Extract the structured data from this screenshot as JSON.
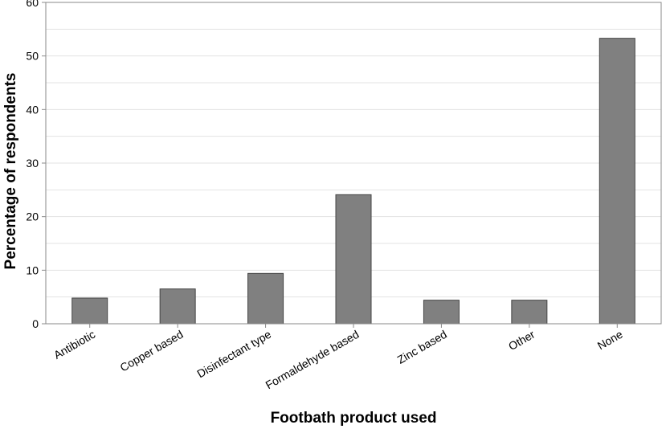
{
  "chart_data": {
    "type": "bar",
    "title": "",
    "xlabel": "Footbath product used",
    "ylabel": "Percentage of respondents",
    "categories": [
      "Antibiotic",
      "Copper based",
      "Disinfectant type",
      "Formaldehyde based",
      "Zinc based",
      "Other",
      "None"
    ],
    "values": [
      4.8,
      6.5,
      9.4,
      24.1,
      4.4,
      4.4,
      53.3
    ],
    "ylim": [
      0,
      60
    ],
    "yticks": [
      0,
      10,
      20,
      30,
      40,
      50,
      60
    ],
    "grid": true,
    "legend": "none",
    "colors": {
      "bar_fill": "#808080",
      "bar_stroke": "#444444",
      "grid": "#e3e3e3",
      "axis": "#8a8a8a"
    }
  }
}
